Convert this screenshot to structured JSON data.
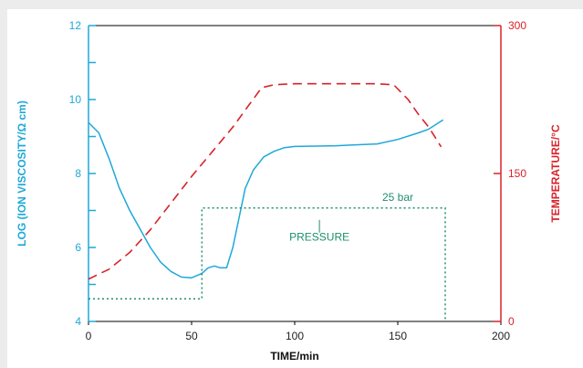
{
  "colors": {
    "left_axis": "#1fa8d8",
    "right_axis": "#d8232a",
    "pressure": "#1f8f6e",
    "frame": "#000000"
  },
  "chart_data": {
    "type": "line",
    "title": "",
    "xlabel": "TIME/min",
    "ylabel": "LOG (ION VISCOSITY/Ω cm)",
    "y2label": "TEMPERATURE/°C",
    "xlim": [
      0,
      200
    ],
    "ylim": [
      4,
      12
    ],
    "y2lim": [
      0,
      300
    ],
    "xticks": [
      0,
      50,
      100,
      150,
      200
    ],
    "yticks": [
      4,
      6,
      8,
      10,
      12
    ],
    "y2ticks": [
      0,
      150,
      300
    ],
    "grid": false,
    "legend": "none",
    "series": [
      {
        "axis": "left",
        "style": "solid",
        "color": "#1fa8d8",
        "points": [
          [
            0,
            9.38
          ],
          [
            5,
            9.1
          ],
          [
            10,
            8.4
          ],
          [
            15,
            7.6
          ],
          [
            20,
            7.0
          ],
          [
            25,
            6.5
          ],
          [
            30,
            6.0
          ],
          [
            35,
            5.6
          ],
          [
            40,
            5.35
          ],
          [
            45,
            5.2
          ],
          [
            50,
            5.18
          ],
          [
            55,
            5.3
          ],
          [
            58,
            5.45
          ],
          [
            61,
            5.5
          ],
          [
            64,
            5.45
          ],
          [
            67,
            5.45
          ],
          [
            70,
            6.0
          ],
          [
            73,
            6.8
          ],
          [
            76,
            7.6
          ],
          [
            80,
            8.1
          ],
          [
            85,
            8.45
          ],
          [
            90,
            8.6
          ],
          [
            95,
            8.7
          ],
          [
            100,
            8.73
          ],
          [
            120,
            8.75
          ],
          [
            140,
            8.8
          ],
          [
            150,
            8.92
          ],
          [
            160,
            9.1
          ],
          [
            165,
            9.2
          ],
          [
            172,
            9.45
          ]
        ]
      },
      {
        "axis": "right",
        "style": "dashed",
        "color": "#d8232a",
        "points": [
          [
            0,
            43
          ],
          [
            10,
            53
          ],
          [
            20,
            70
          ],
          [
            30,
            93
          ],
          [
            40,
            120
          ],
          [
            50,
            147
          ],
          [
            60,
            172
          ],
          [
            70,
            197
          ],
          [
            78,
            220
          ],
          [
            84,
            237
          ],
          [
            90,
            240
          ],
          [
            100,
            241
          ],
          [
            120,
            241
          ],
          [
            140,
            241
          ],
          [
            148,
            240
          ],
          [
            155,
            225
          ],
          [
            160,
            210
          ],
          [
            165,
            197
          ],
          [
            171,
            177
          ]
        ]
      }
    ],
    "pressure_line": {
      "axis": "right",
      "style": "dotted",
      "color": "#1f8f6e",
      "points": [
        [
          0,
          23
        ],
        [
          55,
          23
        ],
        [
          55,
          115
        ],
        [
          173,
          115
        ],
        [
          173,
          0
        ]
      ]
    },
    "annotations": [
      {
        "text": "25 bar",
        "x": 150,
        "y": 122
      },
      {
        "text": "PRESSURE",
        "x": 112,
        "y": 82
      }
    ]
  }
}
